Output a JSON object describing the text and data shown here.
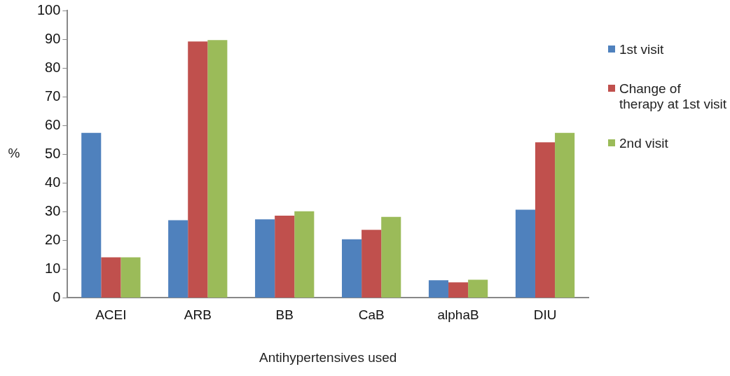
{
  "chart_data": {
    "type": "bar",
    "xlabel": "Antihypertensives used",
    "ylabel": "%",
    "categories": [
      "ACEI",
      "ARB",
      "BB",
      "CaB",
      "alphaB",
      "DIU"
    ],
    "series": [
      {
        "name": "1st visit",
        "color": "#4f81bd",
        "values": [
          57.4,
          27.0,
          27.3,
          20.4,
          6.1,
          30.7
        ]
      },
      {
        "name": "Change of therapy at 1st visit",
        "color": "#c0504d",
        "values": [
          14.1,
          89.2,
          28.6,
          23.7,
          5.4,
          54.1
        ]
      },
      {
        "name": "2nd visit",
        "color": "#9bbb59",
        "values": [
          14.1,
          89.7,
          30.1,
          28.2,
          6.3,
          57.4
        ]
      }
    ],
    "ylim": [
      0,
      100
    ],
    "yticks": [
      0,
      10,
      20,
      30,
      40,
      50,
      60,
      70,
      80,
      90,
      100
    ],
    "grid": false,
    "legend": "right"
  }
}
